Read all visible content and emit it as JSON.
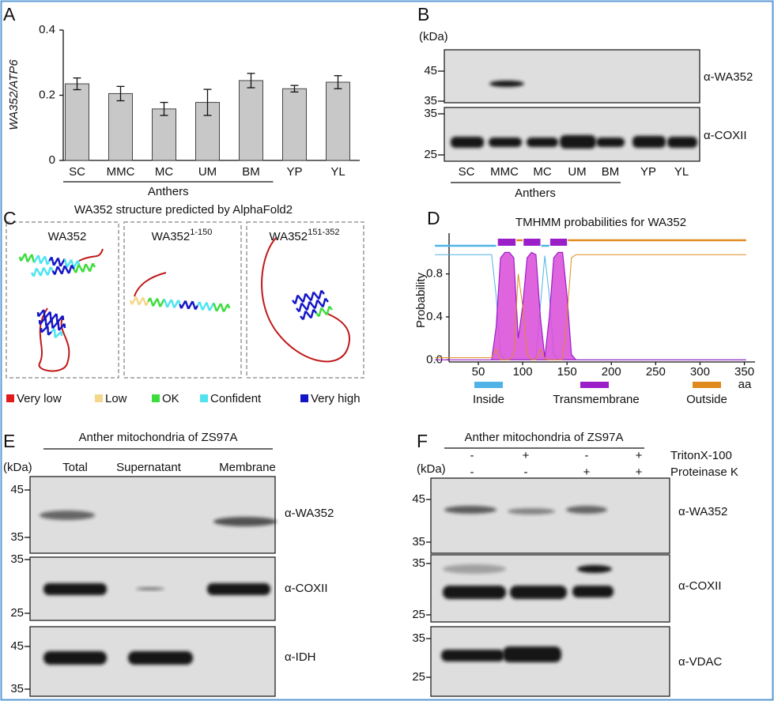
{
  "chart_data": [
    {
      "type": "bar",
      "panel": "A",
      "ylabel": "WA352/ATP6",
      "categories": [
        "SC",
        "MMC",
        "MC",
        "UM",
        "BM",
        "YP",
        "YL"
      ],
      "values": [
        0.235,
        0.205,
        0.158,
        0.178,
        0.245,
        0.22,
        0.24
      ],
      "errors": [
        0.018,
        0.022,
        0.02,
        0.04,
        0.022,
        0.01,
        0.02
      ],
      "group_label": "Anthers",
      "color": "#c8c8c8",
      "ylim": [
        0,
        0.4
      ],
      "yticks": [
        0,
        0.2,
        0.4
      ],
      "grid": false
    },
    {
      "type": "line",
      "panel": "D",
      "title": "TMHMM probabilities for WA352",
      "ylabel": "Probability",
      "xunit": "aa",
      "x": [
        1,
        65,
        70,
        75,
        80,
        85,
        90,
        95,
        100,
        105,
        110,
        115,
        120,
        125,
        130,
        135,
        140,
        145,
        150,
        155,
        160,
        200,
        250,
        300,
        352
      ],
      "series": [
        {
          "name": "Inside",
          "color": "#4fb3e8",
          "values": [
            0.98,
            0.98,
            0.6,
            0.05,
            0,
            0,
            0,
            0,
            0,
            0,
            0,
            0.02,
            0.5,
            0.97,
            0.6,
            0.05,
            0,
            0,
            0,
            0,
            0,
            0,
            0,
            0,
            0
          ],
          "segments": [
            [
              1,
              70
            ],
            [
              121,
              130
            ]
          ]
        },
        {
          "name": "Transmembrane",
          "color": "#9b1fc9",
          "values": [
            0,
            0,
            0.3,
            0.95,
            1,
            1,
            0.95,
            0.2,
            0.5,
            0.95,
            1,
            0.98,
            0.4,
            0.02,
            0.4,
            0.95,
            1,
            1,
            0.6,
            0.05,
            0,
            0,
            0,
            0,
            0
          ],
          "segments": [
            [
              72,
              92
            ],
            [
              101,
              120
            ],
            [
              131,
              150
            ]
          ]
        },
        {
          "name": "Outside",
          "color": "#e08a1e",
          "values": [
            0.02,
            0.02,
            0.1,
            0,
            0,
            0,
            0.05,
            0.8,
            0.5,
            0.05,
            0,
            0,
            0.1,
            0.01,
            0,
            0,
            0,
            0,
            0.4,
            0.95,
            0.98,
            0.98,
            0.98,
            0.98,
            0.98
          ],
          "segments": [
            [
              93,
              100
            ],
            [
              151,
              352
            ]
          ]
        }
      ],
      "xlim": [
        17,
        362
      ],
      "xticks": [
        50,
        100,
        150,
        200,
        250,
        300,
        350
      ],
      "ylim": [
        -0.02,
        1.18
      ],
      "yticks": [
        {
          "value": 0,
          "label": "0.0"
        },
        0.4,
        0.8
      ],
      "grid": false
    }
  ],
  "panel_b": {
    "label": "B",
    "unit": "(kDa)",
    "blots": [
      {
        "antibody": "α-WA352",
        "markers": [
          45,
          35
        ]
      },
      {
        "antibody": "α-COXII",
        "markers": [
          35,
          25
        ]
      }
    ],
    "lanes": [
      "SC",
      "MMC",
      "MC",
      "UM",
      "BM",
      "YP",
      "YL"
    ],
    "group_label": "Anthers"
  },
  "panel_c": {
    "label": "C",
    "title": "WA352 structure predicted by AlphaFold2",
    "models": [
      {
        "name": "WA352"
      },
      {
        "name": "WA352",
        "sup": "1-150"
      },
      {
        "name": "WA352",
        "sup": "151-352"
      }
    ],
    "confidence": [
      {
        "label": "Very low",
        "color": "#e01b1b"
      },
      {
        "label": "Low",
        "color": "#f5d78a"
      },
      {
        "label": "OK",
        "color": "#3ddc3d"
      },
      {
        "label": "Confident",
        "color": "#4fe3f0"
      },
      {
        "label": "Very high",
        "color": "#1515c8"
      }
    ]
  },
  "panel_e": {
    "label": "E",
    "title": "Anther mitochondria of ZS97A",
    "unit": "(kDa)",
    "columns": [
      "Total",
      "Supernatant",
      "Membrane"
    ],
    "blots": [
      {
        "antibody": "α-WA352",
        "markers": [
          45,
          35
        ]
      },
      {
        "antibody": "α-COXII",
        "markers": [
          35,
          25
        ]
      },
      {
        "antibody": "α-IDH",
        "markers": [
          45,
          35
        ]
      }
    ]
  },
  "panel_f": {
    "label": "F",
    "title": "Anther mitochondria of ZS97A",
    "unit": "(kDa)",
    "treatments": [
      {
        "name": "TritonX-100",
        "signs": [
          "-",
          "+",
          "-",
          "+"
        ]
      },
      {
        "name": "Proteinase K",
        "signs": [
          "-",
          "-",
          "+",
          "+"
        ]
      }
    ],
    "blots": [
      {
        "antibody": "α-WA352",
        "markers": [
          45,
          35
        ]
      },
      {
        "antibody": "α-COXII",
        "markers": [
          35,
          25
        ]
      },
      {
        "antibody": "α-VDAC",
        "markers": [
          35,
          25
        ]
      }
    ]
  }
}
